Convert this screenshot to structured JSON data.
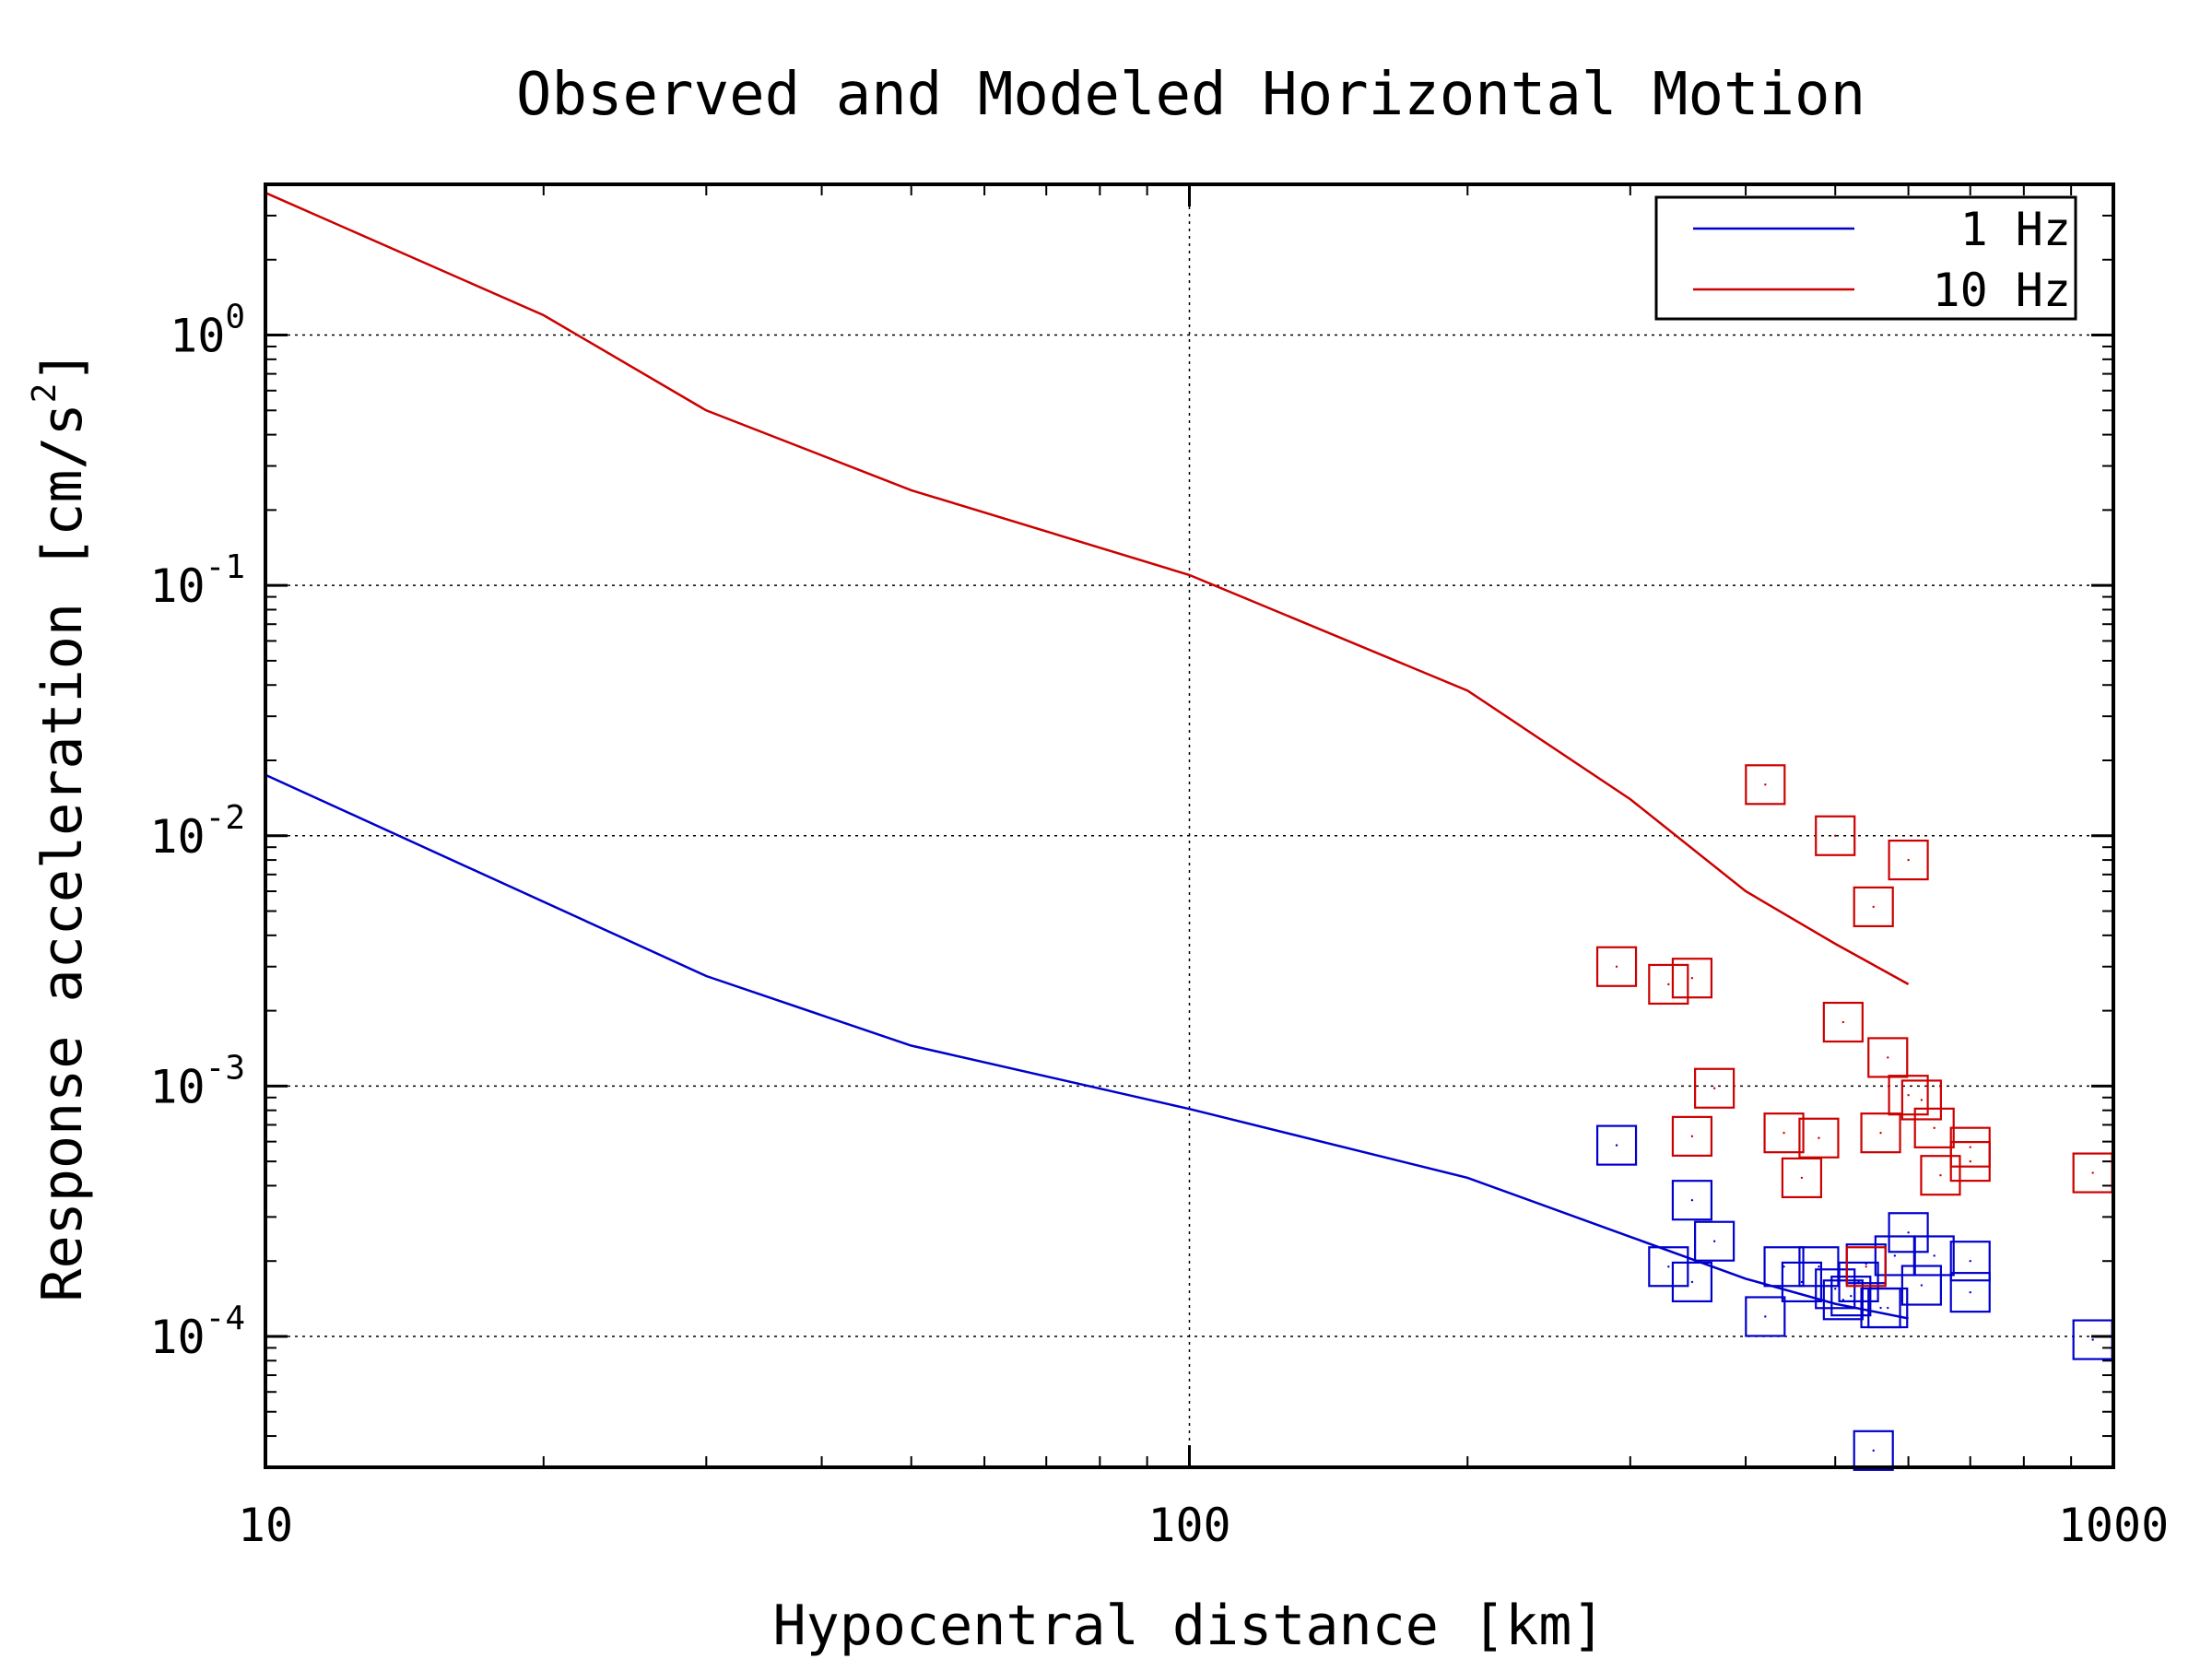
{
  "chart_data": {
    "type": "scatter",
    "title": "Observed and Modeled Horizontal Motion",
    "xlabel": "Hypocentral distance [km]",
    "ylabel_main": "Response acceleration [cm/s",
    "ylabel_sup": "2",
    "ylabel_close": "]",
    "x_scale": "log",
    "y_scale": "log",
    "xlim": [
      10,
      1000
    ],
    "ylim": [
      3e-05,
      4.0
    ],
    "x_ticks": [
      {
        "value": 10,
        "label": "10"
      },
      {
        "value": 100,
        "label": "100"
      },
      {
        "value": 1000,
        "label": "1000"
      }
    ],
    "y_ticks": [
      {
        "value": 1,
        "base": "10",
        "exp": "0"
      },
      {
        "value": 0.1,
        "base": "10",
        "exp": "-1"
      },
      {
        "value": 0.01,
        "base": "10",
        "exp": "-2"
      },
      {
        "value": 0.001,
        "base": "10",
        "exp": "-3"
      },
      {
        "value": 0.0001,
        "base": "10",
        "exp": "-4"
      }
    ],
    "grid": true,
    "legend_position": "top-right",
    "series": [
      {
        "name": "1 Hz",
        "color": "#0000cc",
        "kind": "line",
        "x": [
          10,
          30,
          50,
          100,
          200,
          300,
          400,
          500,
          600
        ],
        "y": [
          0.0175,
          0.00275,
          0.00145,
          0.00081,
          0.00043,
          0.00025,
          0.00017,
          0.000135,
          0.000118
        ]
      },
      {
        "name": "10 Hz",
        "color": "#cc0000",
        "kind": "line",
        "x": [
          10,
          20,
          30,
          50,
          100,
          200,
          300,
          400,
          500,
          600
        ],
        "y": [
          3.7,
          1.2,
          0.5,
          0.24,
          0.11,
          0.038,
          0.014,
          0.006,
          0.0037,
          0.00255
        ]
      }
    ],
    "scatter_series": [
      {
        "series": "1 Hz",
        "color": "#0000cc",
        "x": [
          290,
          330,
          350,
          350,
          370,
          420,
          440,
          460,
          480,
          500,
          510,
          520,
          530,
          540,
          550,
          560,
          570,
          580,
          600,
          620,
          640,
          700,
          700,
          950
        ],
        "y": [
          0.00058,
          0.00019,
          0.00035,
          0.000165,
          0.00024,
          0.00012,
          0.00019,
          0.000165,
          0.00019,
          0.000155,
          0.00014,
          0.000145,
          0.000165,
          0.000195,
          3.5e-05,
          0.00013,
          0.00013,
          0.00021,
          0.00026,
          0.00016,
          0.00021,
          0.0002,
          0.00015,
          9.7e-05
        ]
      },
      {
        "series": "10 Hz",
        "color": "#cc0000",
        "x": [
          290,
          330,
          350,
          350,
          370,
          420,
          440,
          460,
          480,
          500,
          510,
          540,
          550,
          560,
          570,
          600,
          600,
          620,
          640,
          650,
          700,
          700,
          950
        ],
        "y": [
          0.003,
          0.00255,
          0.0027,
          0.00063,
          0.00098,
          0.016,
          0.00065,
          0.00043,
          0.00062,
          0.01,
          0.0018,
          0.00019,
          0.0052,
          0.00065,
          0.0013,
          0.008,
          0.00092,
          0.00088,
          0.00068,
          0.00044,
          0.00057,
          0.0005,
          0.00045
        ]
      }
    ]
  }
}
